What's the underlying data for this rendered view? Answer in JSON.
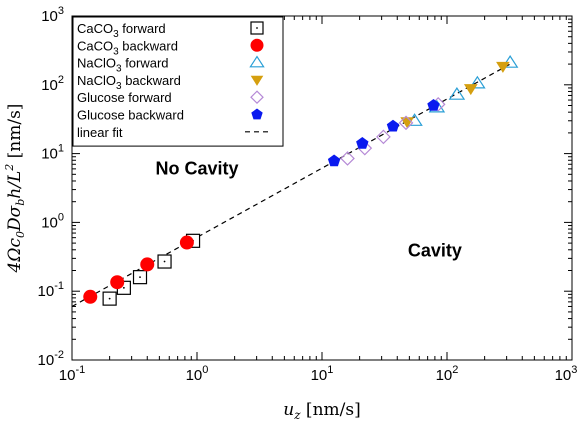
{
  "chart_data": {
    "type": "scatter",
    "xlabel": "u_z [nm/s]",
    "ylabel": "4Ωc₀Dσ_b h / L² [nm/s]",
    "xscale": "log",
    "yscale": "log",
    "xlim": [
      0.1,
      1000
    ],
    "ylim": [
      0.01,
      1000
    ],
    "x_ticks": [
      {
        "base": "10",
        "exp": "-1"
      },
      {
        "base": "10",
        "exp": "0"
      },
      {
        "base": "10",
        "exp": "1"
      },
      {
        "base": "10",
        "exp": "2"
      },
      {
        "base": "10",
        "exp": "3"
      }
    ],
    "y_ticks": [
      {
        "base": "10",
        "exp": "-2"
      },
      {
        "base": "10",
        "exp": "-1"
      },
      {
        "base": "10",
        "exp": "0"
      },
      {
        "base": "10",
        "exp": "1"
      },
      {
        "base": "10",
        "exp": "2"
      },
      {
        "base": "10",
        "exp": "3"
      }
    ],
    "legend_position": "top-left",
    "annotations": [
      {
        "text": "No Cavity",
        "x": 1.0,
        "y": 5.0
      },
      {
        "text": "Cavity",
        "x": 80,
        "y": 0.32
      }
    ],
    "series": [
      {
        "name": "CaCO3 forward",
        "legend_main": "CaCO",
        "legend_sub": "3",
        "legend_rest": " forward",
        "marker": "square-dot",
        "color": "#000000",
        "points": [
          [
            0.2,
            0.078
          ],
          [
            0.26,
            0.112
          ],
          [
            0.35,
            0.16
          ],
          [
            0.55,
            0.27
          ],
          [
            0.93,
            0.54
          ]
        ]
      },
      {
        "name": "CaCO3 backward",
        "legend_main": "CaCO",
        "legend_sub": "3",
        "legend_rest": " backward",
        "marker": "circle",
        "color": "#ff0000",
        "points": [
          [
            0.14,
            0.083
          ],
          [
            0.23,
            0.135
          ],
          [
            0.4,
            0.245
          ],
          [
            0.83,
            0.51
          ]
        ]
      },
      {
        "name": "NaClO3 forward",
        "legend_main": "NaClO",
        "legend_sub": "3",
        "legend_rest": " forward",
        "marker": "triangle-up",
        "color": "#2a9fd6",
        "points": [
          [
            55,
            30
          ],
          [
            83,
            47
          ],
          [
            120,
            72
          ],
          [
            175,
            105
          ],
          [
            320,
            210
          ]
        ]
      },
      {
        "name": "NaClO3 backward",
        "legend_main": "NaClO",
        "legend_sub": "3",
        "legend_rest": " backward",
        "marker": "triangle-down",
        "color": "#d59f0f",
        "points": [
          [
            48,
            29
          ],
          [
            155,
            88
          ],
          [
            280,
            185
          ]
        ]
      },
      {
        "name": "Glucose forward",
        "legend_main": "Glucose forward",
        "legend_sub": "",
        "legend_rest": "",
        "marker": "diamond",
        "color": "#b589d6",
        "points": [
          [
            16,
            8.5
          ],
          [
            22,
            12
          ],
          [
            31,
            17.5
          ],
          [
            47,
            28
          ],
          [
            85,
            52
          ]
        ]
      },
      {
        "name": "Glucose backward",
        "legend_main": "Glucose backward",
        "legend_sub": "",
        "legend_rest": "",
        "marker": "pentagon",
        "color": "#0a1aef",
        "points": [
          [
            12.5,
            7.8
          ],
          [
            21,
            14
          ],
          [
            37,
            25
          ],
          [
            78,
            50
          ]
        ]
      },
      {
        "name": "linear fit",
        "legend_main": "linear fit",
        "legend_sub": "",
        "legend_rest": "",
        "marker": "dashed-line",
        "color": "#000000",
        "points": [
          [
            0.1,
            0.06
          ],
          [
            320,
            200
          ]
        ]
      }
    ]
  }
}
